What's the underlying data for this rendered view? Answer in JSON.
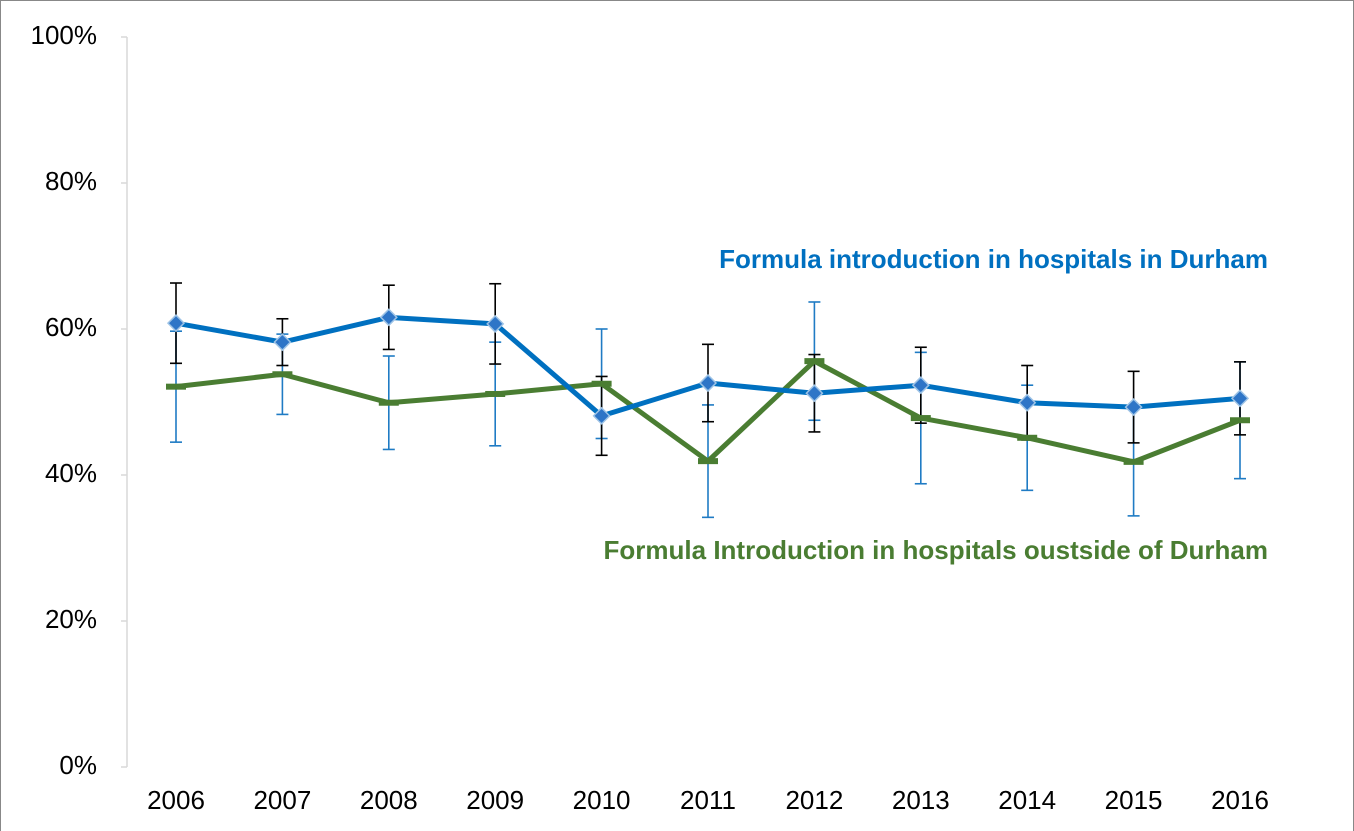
{
  "chart_data": {
    "type": "line",
    "categories": [
      "2006",
      "2007",
      "2008",
      "2009",
      "2010",
      "2011",
      "2012",
      "2013",
      "2014",
      "2015",
      "2016"
    ],
    "series": [
      {
        "name": "Formula introduction in hospitals in Durham",
        "color": "#0070c0",
        "error_color": "#000000",
        "marker": "diamond",
        "values": [
          60.8,
          58.2,
          61.6,
          60.7,
          48.1,
          52.6,
          51.2,
          52.3,
          49.9,
          49.3,
          50.5
        ],
        "errors": [
          5.5,
          3.2,
          4.4,
          5.5,
          5.4,
          5.3,
          5.3,
          5.2,
          5.1,
          4.9,
          5.0
        ]
      },
      {
        "name": "Formula Introduction in hospitals oustside of Durham",
        "color": "#4a7d32",
        "error_color": "#1f7bc4",
        "marker": "dash",
        "values": [
          52.1,
          53.8,
          49.9,
          51.1,
          52.5,
          41.9,
          55.6,
          47.8,
          45.1,
          41.8,
          47.5
        ],
        "errors": [
          7.6,
          5.5,
          6.4,
          7.1,
          7.5,
          7.7,
          8.1,
          9.0,
          7.2,
          7.4,
          8.0
        ]
      }
    ],
    "ylim": [
      0,
      100
    ],
    "yticks": [
      {
        "value": 0,
        "label": "0%"
      },
      {
        "value": 20,
        "label": "20%"
      },
      {
        "value": 40,
        "label": "40%"
      },
      {
        "value": 60,
        "label": "60%"
      },
      {
        "value": 80,
        "label": "80%"
      },
      {
        "value": 100,
        "label": "100%"
      }
    ],
    "grid": false
  }
}
